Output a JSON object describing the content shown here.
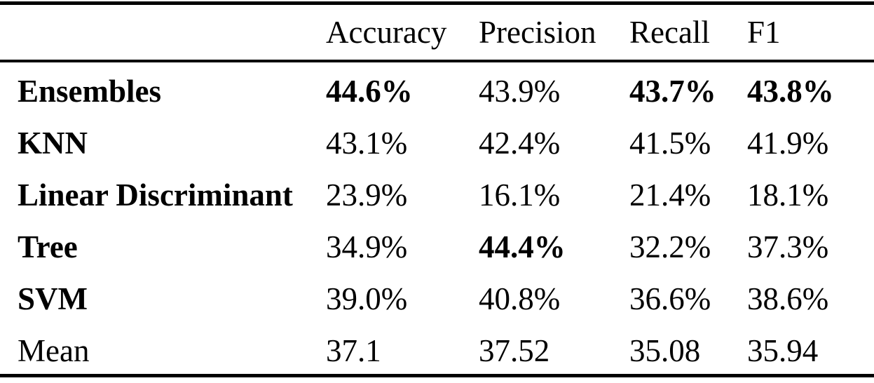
{
  "colors": {
    "background": "#ffffff",
    "text": "#000000",
    "rule": "#000000"
  },
  "table": {
    "header": {
      "accuracy": "Accuracy",
      "precision": "Precision",
      "recall": "Recall",
      "f1": "F1"
    },
    "rows": [
      {
        "label": "Ensembles",
        "accuracy": "44.6%",
        "precision": "43.9%",
        "recall": "43.7%",
        "f1": "43.8%",
        "bold": {
          "label": true,
          "accuracy": true,
          "precision": false,
          "recall": true,
          "f1": true
        }
      },
      {
        "label": "KNN",
        "accuracy": "43.1%",
        "precision": "42.4%",
        "recall": "41.5%",
        "f1": "41.9%",
        "bold": {
          "label": true,
          "accuracy": false,
          "precision": false,
          "recall": false,
          "f1": false
        }
      },
      {
        "label": "Linear Discriminant",
        "accuracy": "23.9%",
        "precision": "16.1%",
        "recall": "21.4%",
        "f1": "18.1%",
        "bold": {
          "label": true,
          "accuracy": false,
          "precision": false,
          "recall": false,
          "f1": false
        }
      },
      {
        "label": "Tree",
        "accuracy": "34.9%",
        "precision": "44.4%",
        "recall": "32.2%",
        "f1": "37.3%",
        "bold": {
          "label": true,
          "accuracy": false,
          "precision": true,
          "recall": false,
          "f1": false
        }
      },
      {
        "label": "SVM",
        "accuracy": "39.0%",
        "precision": "40.8%",
        "recall": "36.6%",
        "f1": "38.6%",
        "bold": {
          "label": true,
          "accuracy": false,
          "precision": false,
          "recall": false,
          "f1": false
        }
      },
      {
        "label": "Mean",
        "accuracy": "37.1",
        "precision": "37.52",
        "recall": "35.08",
        "f1": "35.94",
        "bold": {
          "label": false,
          "accuracy": false,
          "precision": false,
          "recall": false,
          "f1": false
        }
      }
    ]
  }
}
